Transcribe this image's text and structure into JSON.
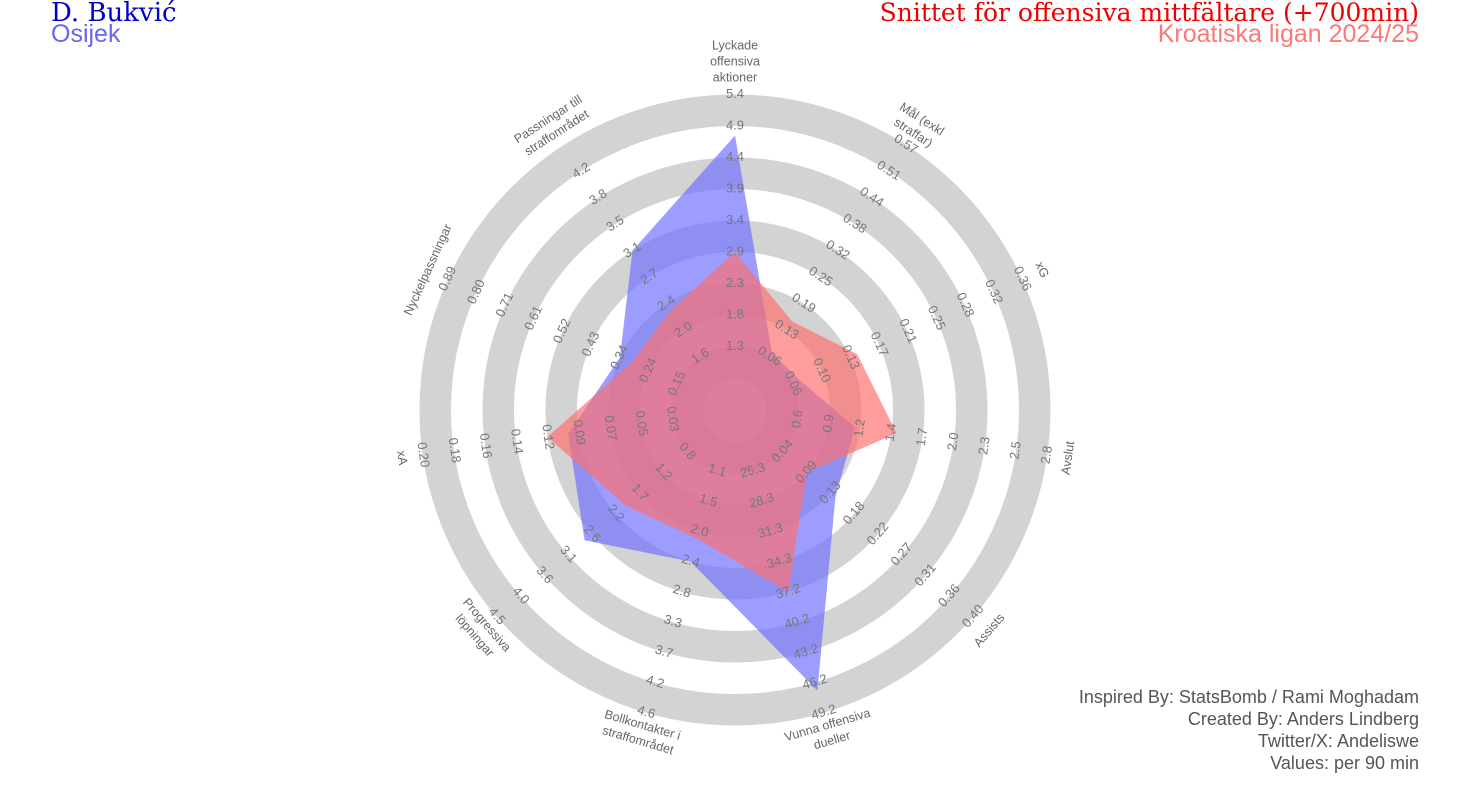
{
  "header": {
    "player": "D. Bukvić",
    "club": "Osijek",
    "title": "Snittet för offensiva mittfältare (+700min)",
    "subtitle": "Kroatiska ligan 2024/25"
  },
  "credits": [
    "Inspired By: StatsBomb / Rami Moghadam",
    "Created By: Anders Lindberg",
    "Twitter/X: Andeliswe",
    "Values: per 90 min"
  ],
  "chart_data": {
    "type": "radar",
    "params": [
      {
        "label": [
          "Lyckade",
          "offensiva",
          "aktioner"
        ],
        "ticks": [
          "1.3",
          "1.8",
          "2.3",
          "2.9",
          "3.4",
          "3.9",
          "4.4",
          "4.9",
          "5.4"
        ]
      },
      {
        "label": [
          "Mål (exkl",
          "straffar)"
        ],
        "ticks": [
          "0.06",
          "0.13",
          "0.19",
          "0.25",
          "0.32",
          "0.38",
          "0.44",
          "0.51",
          "0.57"
        ]
      },
      {
        "label": [
          "xG"
        ],
        "ticks": [
          "0.06",
          "0.10",
          "0.13",
          "0.17",
          "0.21",
          "0.25",
          "0.28",
          "0.32",
          "0.36"
        ]
      },
      {
        "label": [
          "Avslut"
        ],
        "ticks": [
          "0.6",
          "0.9",
          "1.2",
          "1.4",
          "1.7",
          "2.0",
          "2.3",
          "2.5",
          "2.8"
        ]
      },
      {
        "label": [
          "Assists"
        ],
        "ticks": [
          "0.04",
          "0.09",
          "0.13",
          "0.18",
          "0.22",
          "0.27",
          "0.31",
          "0.36",
          "0.40"
        ]
      },
      {
        "label": [
          "Vunna offensiva",
          "dueller"
        ],
        "ticks": [
          "25.3",
          "28.3",
          "31.3",
          "34.3",
          "37.2",
          "40.2",
          "43.2",
          "46.2",
          "49.2"
        ]
      },
      {
        "label": [
          "Bollkontakter i",
          "straffområdet"
        ],
        "ticks": [
          "1.1",
          "1.5",
          "2.0",
          "2.4",
          "2.8",
          "3.3",
          "3.7",
          "4.2",
          "4.6"
        ]
      },
      {
        "label": [
          "Progressiva",
          "löpningar"
        ],
        "ticks": [
          "0.8",
          "1.2",
          "1.7",
          "2.2",
          "2.6",
          "3.1",
          "3.6",
          "4.0",
          "4.5"
        ]
      },
      {
        "label": [
          "xA"
        ],
        "ticks": [
          "0.03",
          "0.05",
          "0.07",
          "0.09",
          "0.12",
          "0.14",
          "0.16",
          "0.18",
          "0.20"
        ]
      },
      {
        "label": [
          "Nyckelpassningar"
        ],
        "ticks": [
          "0.15",
          "0.24",
          "0.34",
          "0.43",
          "0.52",
          "0.61",
          "0.71",
          "0.80",
          "0.89"
        ]
      },
      {
        "label": [
          "Passningar till",
          "straffområdet"
        ],
        "ticks": [
          "1.6",
          "2.0",
          "2.4",
          "2.7",
          "3.1",
          "3.5",
          "3.8",
          "4.2"
        ]
      }
    ],
    "series": [
      {
        "name": "D. Bukvić",
        "color": "#6e6eff",
        "values": [
          4.75,
          0.07,
          0.07,
          1.15,
          0.14,
          47.0,
          2.4,
          2.75,
          0.1,
          0.34,
          3.1
        ]
      },
      {
        "name": "Snittet för offensiva mittfältare (+700min)",
        "color": "#ff6e6e",
        "values": [
          2.9,
          0.15,
          0.14,
          1.45,
          0.09,
          37.2,
          2.1,
          2.0,
          0.12,
          0.3,
          2.3
        ]
      }
    ]
  }
}
